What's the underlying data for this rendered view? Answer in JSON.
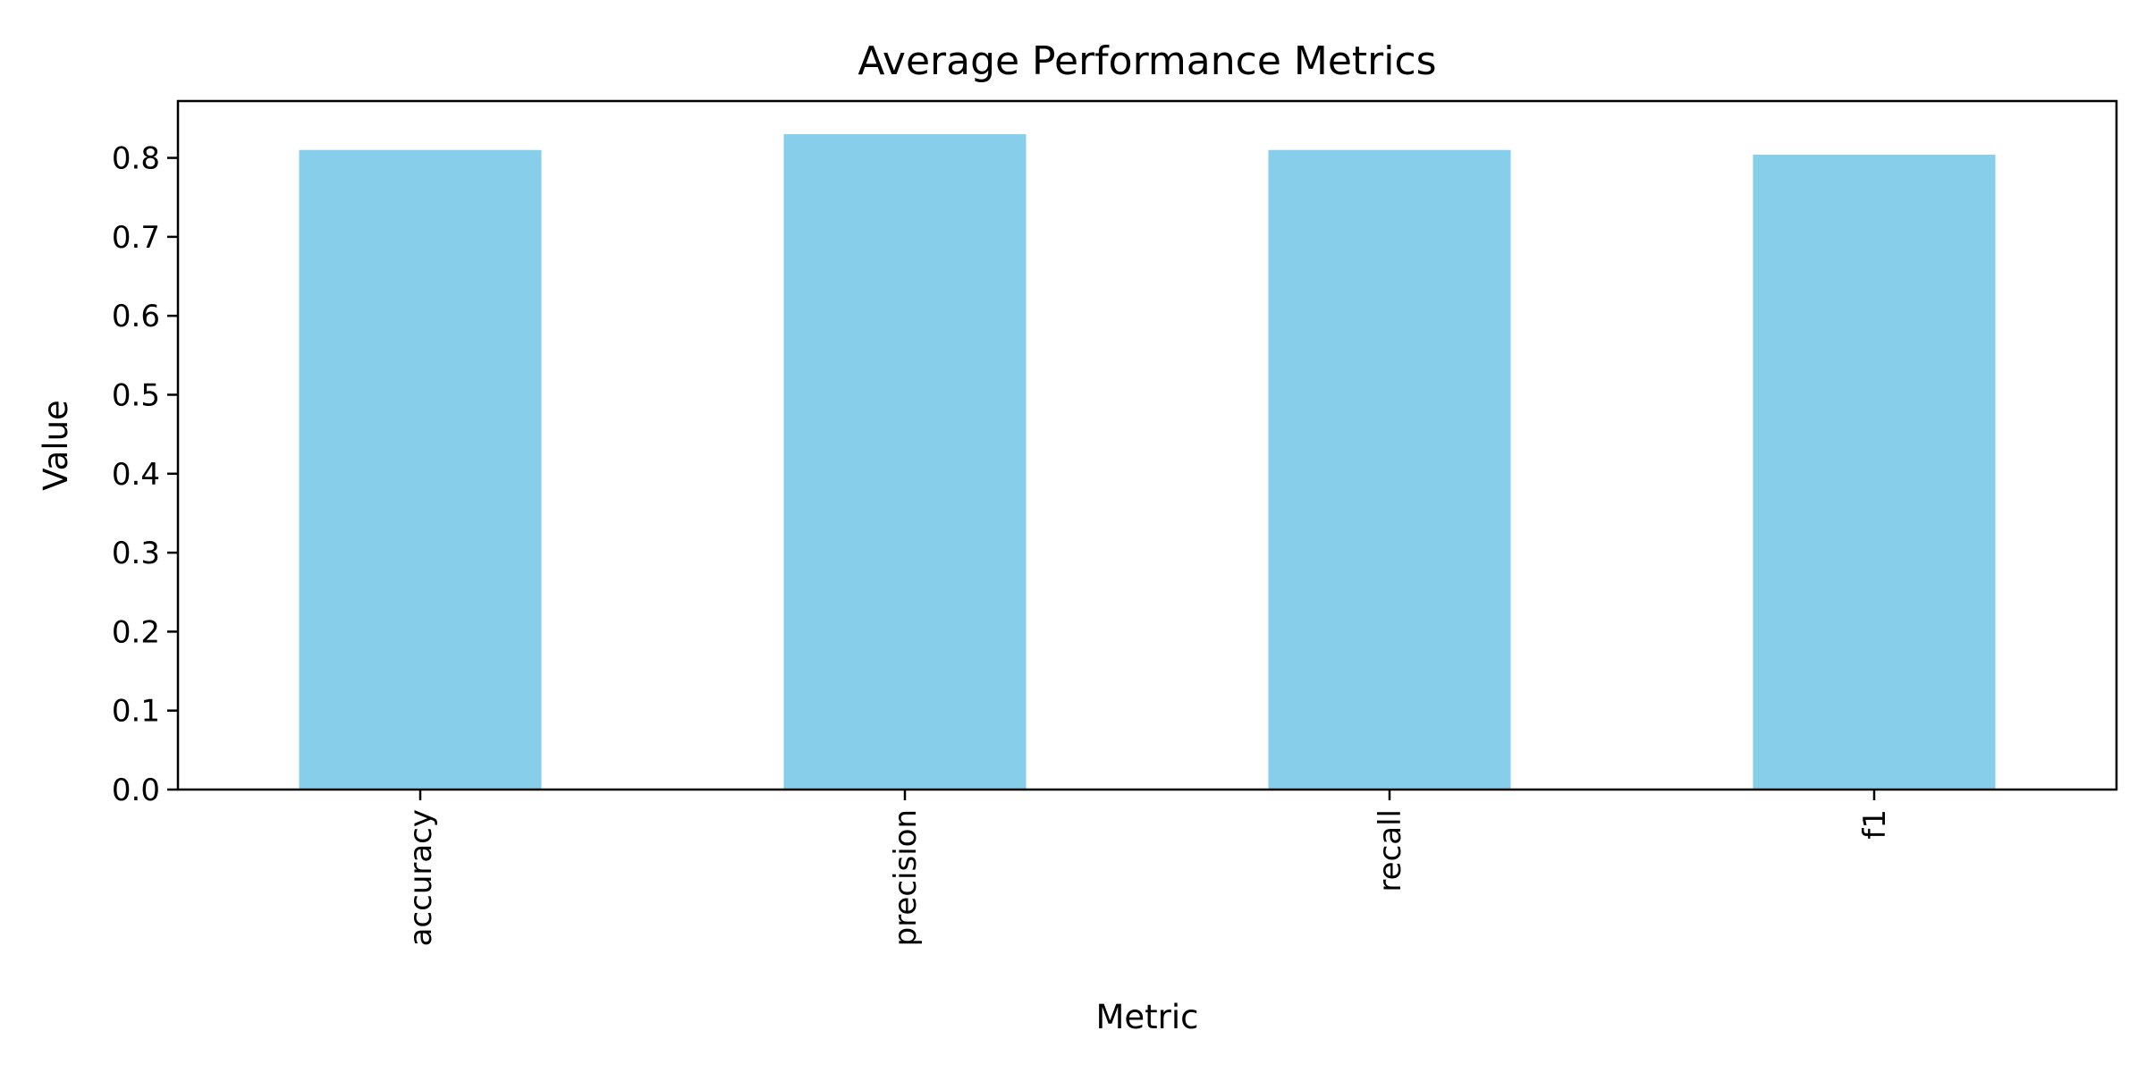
{
  "chart_data": {
    "type": "bar",
    "title": "Average Performance Metrics",
    "xlabel": "Metric",
    "ylabel": "Value",
    "categories": [
      "accuracy",
      "precision",
      "recall",
      "f1"
    ],
    "values": [
      0.81,
      0.83,
      0.81,
      0.804
    ],
    "ylim": [
      0,
      0.872
    ],
    "yticks": [
      "0.0",
      "0.1",
      "0.2",
      "0.3",
      "0.4",
      "0.5",
      "0.6",
      "0.7",
      "0.8"
    ],
    "bar_color": "#87CEEB",
    "grid": false,
    "legend": "none"
  }
}
